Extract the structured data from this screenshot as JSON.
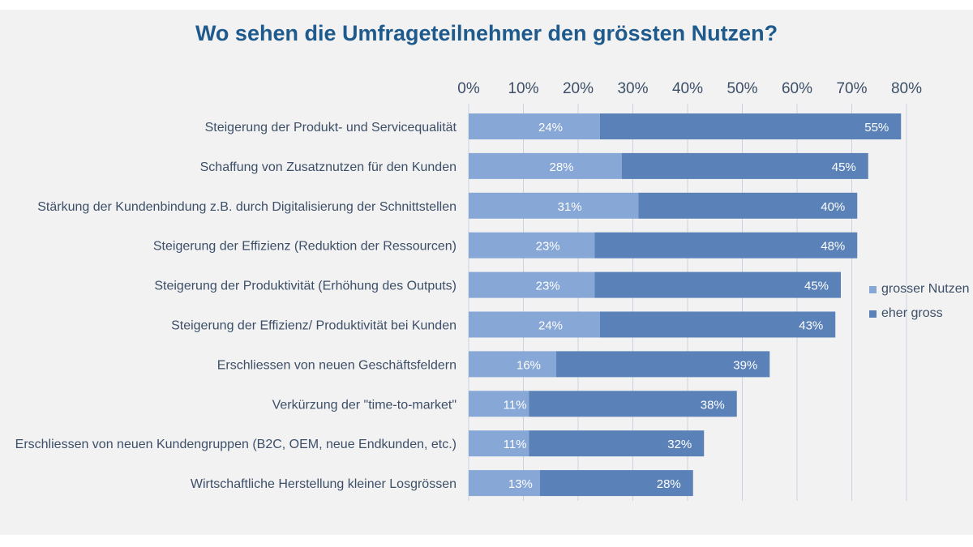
{
  "colors": {
    "series1": "#87a7d6",
    "series2": "#5a82b8",
    "title": "#1f5a8c",
    "text": "#3d4f68",
    "grid": "#c9d3e0"
  },
  "chart_data": {
    "type": "bar",
    "orientation": "horizontal",
    "stacked": true,
    "title": "Wo sehen die Umfrageteilnehmer den grössten Nutzen?",
    "xlim": [
      0,
      80
    ],
    "ticks": [
      "0%",
      "10%",
      "20%",
      "30%",
      "40%",
      "50%",
      "60%",
      "70%",
      "80%"
    ],
    "tick_values": [
      0,
      10,
      20,
      30,
      40,
      50,
      60,
      70,
      80
    ],
    "legend_position": "right",
    "grid": true,
    "categories": [
      "Steigerung der Produkt- und Servicequalität",
      "Schaffung von Zusatznutzen für den Kunden",
      "Stärkung der Kundenbindung z.B. durch Digitalisierung der Schnittstellen",
      "Steigerung der Effizienz (Reduktion der Ressourcen)",
      "Steigerung der Produktivität (Erhöhung des Outputs)",
      "Steigerung der Effizienz/ Produktivität bei Kunden",
      "Erschliessen von neuen Geschäftsfeldern",
      "Verkürzung der \"time-to-market\"",
      "Erschliessen von neuen Kundengruppen (B2C, OEM, neue Endkunden, etc.)",
      "Wirtschaftliche Herstellung kleiner Losgrössen"
    ],
    "series": [
      {
        "name": "grosser Nutzen",
        "values": [
          24,
          28,
          31,
          23,
          23,
          24,
          16,
          11,
          11,
          13
        ],
        "labels": [
          "24%",
          "28%",
          "31%",
          "23%",
          "23%",
          "24%",
          "16%",
          "11%",
          "11%",
          "13%"
        ]
      },
      {
        "name": "eher gross",
        "values": [
          55,
          45,
          40,
          48,
          45,
          43,
          39,
          38,
          32,
          28
        ],
        "labels": [
          "55%",
          "45%",
          "40%",
          "48%",
          "45%",
          "43%",
          "39%",
          "38%",
          "32%",
          "28%"
        ]
      }
    ]
  }
}
